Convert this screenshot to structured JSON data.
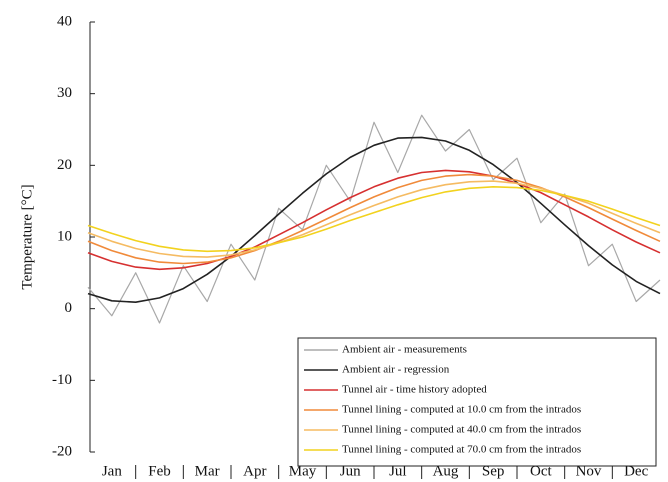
{
  "chart_data": {
    "type": "line",
    "y_label": "Temperature [°C]",
    "x": [
      0,
      0.5,
      1,
      1.5,
      2,
      2.5,
      3,
      3.5,
      4,
      4.5,
      5,
      5.5,
      6,
      6.5,
      7,
      7.5,
      8,
      8.5,
      9,
      9.5,
      10,
      10.5,
      11,
      11.5,
      12
    ],
    "xlim": [
      0,
      12
    ],
    "xticks": [
      {
        "value": 0.5,
        "label": "Jan"
      },
      {
        "value": 1.5,
        "label": "Feb"
      },
      {
        "value": 2.5,
        "label": "Mar"
      },
      {
        "value": 3.5,
        "label": "Apr"
      },
      {
        "value": 4.5,
        "label": "May"
      },
      {
        "value": 5.5,
        "label": "Jun"
      },
      {
        "value": 6.5,
        "label": "Jul"
      },
      {
        "value": 7.5,
        "label": "Aug"
      },
      {
        "value": 8.5,
        "label": "Sep"
      },
      {
        "value": 9.5,
        "label": "Oct"
      },
      {
        "value": 10.5,
        "label": "Nov"
      },
      {
        "value": 11.5,
        "label": "Dec"
      }
    ],
    "ylim": [
      -20,
      40
    ],
    "yticks": [
      -20,
      -10,
      0,
      10,
      20,
      30,
      40
    ],
    "legend": "lower right",
    "series": [
      {
        "name": "Ambient air - measurements",
        "color": "#a8a8a8",
        "values": [
          3,
          -1,
          5,
          -2,
          6,
          1,
          9,
          4,
          14,
          11,
          20,
          15,
          26,
          19,
          27,
          22,
          25,
          18,
          21,
          12,
          16,
          6,
          9,
          1,
          4
        ]
      },
      {
        "name": "Ambient air - regression",
        "color": "#222222",
        "values": [
          2.1,
          1.1,
          0.9,
          1.5,
          2.8,
          4.8,
          7.3,
          10.2,
          13.2,
          16.1,
          18.8,
          21.1,
          22.8,
          23.8,
          23.9,
          23.4,
          22.1,
          20.1,
          17.6,
          14.7,
          11.7,
          8.8,
          6.1,
          3.8,
          2.1
        ]
      },
      {
        "name": "Tunnel air - time history adopted",
        "color": "#d63030",
        "values": [
          7.8,
          6.6,
          5.8,
          5.5,
          5.7,
          6.3,
          7.3,
          8.6,
          10.3,
          12.0,
          13.8,
          15.5,
          17.0,
          18.2,
          19.0,
          19.3,
          19.1,
          18.5,
          17.5,
          16.2,
          14.5,
          12.8,
          11.0,
          9.3,
          7.8
        ]
      },
      {
        "name": "Tunnel lining - computed at 10.0 cm from the intrados",
        "color": "#f08a3a",
        "values": [
          9.4,
          8.1,
          7.1,
          6.5,
          6.3,
          6.5,
          7.1,
          8.1,
          9.4,
          10.9,
          12.5,
          14.1,
          15.6,
          16.9,
          17.9,
          18.5,
          18.7,
          18.5,
          17.9,
          16.9,
          15.6,
          14.1,
          12.5,
          10.9,
          9.4
        ]
      },
      {
        "name": "Tunnel lining - computed at 40.0 cm from the intrados",
        "color": "#f5bb62",
        "values": [
          10.6,
          9.4,
          8.4,
          7.7,
          7.3,
          7.2,
          7.5,
          8.2,
          9.2,
          10.3,
          11.7,
          13.1,
          14.4,
          15.6,
          16.6,
          17.3,
          17.7,
          17.8,
          17.5,
          16.8,
          15.8,
          14.7,
          13.3,
          11.9,
          10.6
        ]
      },
      {
        "name": "Tunnel lining - computed at 70.0 cm from the intrados",
        "color": "#f2d21e",
        "values": [
          11.6,
          10.5,
          9.5,
          8.7,
          8.2,
          8.0,
          8.1,
          8.5,
          9.2,
          10.0,
          11.1,
          12.3,
          13.4,
          14.5,
          15.5,
          16.3,
          16.8,
          17.0,
          16.9,
          16.5,
          15.8,
          15.0,
          13.9,
          12.7,
          11.6
        ]
      }
    ]
  }
}
